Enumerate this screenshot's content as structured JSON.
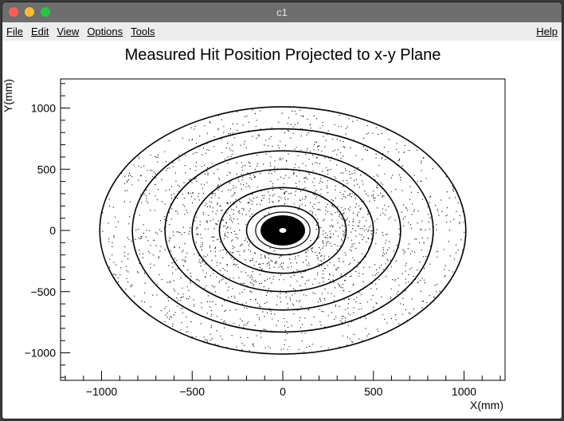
{
  "window": {
    "title": "c1"
  },
  "menu": {
    "items": [
      {
        "label": "File"
      },
      {
        "label": "Edit"
      },
      {
        "label": "View"
      },
      {
        "label": "Options"
      },
      {
        "label": "Tools"
      }
    ],
    "help": "Help"
  },
  "chart_data": {
    "type": "scatter",
    "title": "Measured Hit Position Projected to x-y Plane",
    "xlabel": "X(mm)",
    "ylabel": "Y(mm)",
    "xlim": [
      -1230,
      1230
    ],
    "ylim": [
      -1230,
      1230
    ],
    "x_ticks": [
      -1000,
      -500,
      0,
      500,
      1000
    ],
    "y_ticks": [
      1000,
      500,
      0,
      -500,
      -1000
    ],
    "x_tick_labels": [
      "−1000",
      "−500",
      "0",
      "500",
      "1000"
    ],
    "y_tick_labels": [
      "1000",
      "500",
      "0",
      "−500",
      "−1000"
    ],
    "grid": false,
    "marker_color": "#000000",
    "rings_mm": [
      {
        "radius": 1010,
        "kind": "outer-boundary"
      },
      {
        "radius": 830,
        "kind": "hit-ring"
      },
      {
        "radius": 650,
        "kind": "hit-ring"
      },
      {
        "radius": 500,
        "kind": "hit-ring"
      },
      {
        "radius": 350,
        "kind": "hit-ring"
      },
      {
        "radius": 200,
        "kind": "hit-ring"
      },
      {
        "radius": 150,
        "kind": "inner-gap-edge"
      },
      {
        "radius": 120,
        "kind": "dense-core-edge"
      },
      {
        "radius": 20,
        "kind": "central-hole"
      }
    ],
    "density_bands": [
      {
        "r_min": 830,
        "r_max": 1010,
        "density": 0.55
      },
      {
        "r_min": 650,
        "r_max": 830,
        "density": 0.75
      },
      {
        "r_min": 500,
        "r_max": 650,
        "density": 0.95
      },
      {
        "r_min": 350,
        "r_max": 500,
        "density": 1.3
      },
      {
        "r_min": 200,
        "r_max": 350,
        "density": 1.7
      },
      {
        "r_min": 150,
        "r_max": 200,
        "density": 0.2
      },
      {
        "r_min": 20,
        "r_max": 120,
        "density": 6.0
      }
    ]
  }
}
